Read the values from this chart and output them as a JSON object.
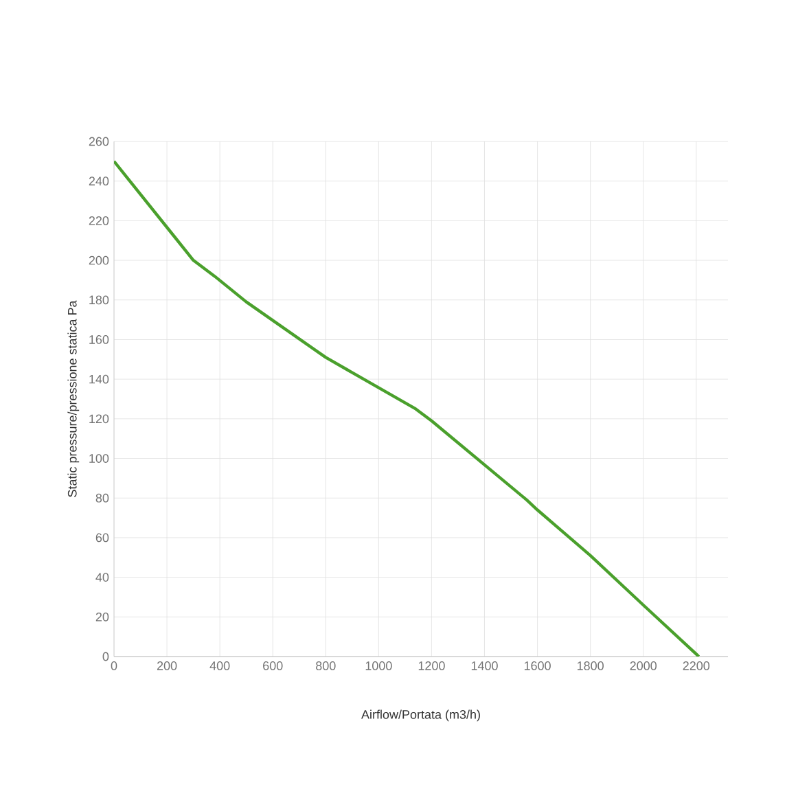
{
  "chart_data": {
    "type": "line",
    "xlabel": "Airflow/Portata (m3/h)",
    "ylabel": "Static pressure/pressione statica Pa",
    "x": [
      0,
      300,
      380,
      500,
      800,
      1140,
      1200,
      1560,
      1600,
      1800,
      2000,
      2210
    ],
    "series": [
      {
        "color": "#4aa02c",
        "values": [
          250,
          200,
          192,
          179,
          151,
          125,
          119,
          79,
          74,
          51,
          26,
          0
        ]
      }
    ],
    "xlim": [
      0,
      2320
    ],
    "ylim": [
      0,
      260
    ],
    "xticks": [
      0,
      200,
      400,
      600,
      800,
      1000,
      1200,
      1400,
      1600,
      1800,
      2000,
      2200
    ],
    "yticks": [
      0,
      20,
      40,
      60,
      80,
      100,
      120,
      140,
      160,
      180,
      200,
      220,
      240,
      260
    ],
    "grid": true,
    "marker": "none",
    "line_style": "solid"
  }
}
